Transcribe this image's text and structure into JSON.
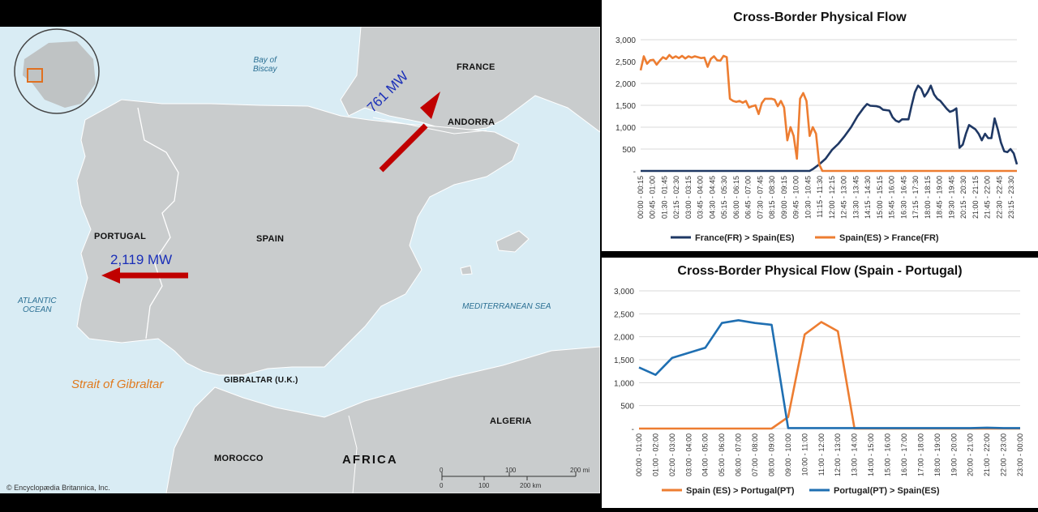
{
  "map": {
    "labels": {
      "bay_of_biscay": "Bay of\nBiscay",
      "france": "FRANCE",
      "andorra": "ANDORRA",
      "portugal": "PORTUGAL",
      "spain": "SPAIN",
      "atlantic": "ATLANTIC\nOCEAN",
      "mediterranean": "MEDITERRANEAN SEA",
      "strait": "Strait of Gibraltar",
      "gibraltar": "GIBRALTAR (U.K.)",
      "algeria": "ALGERIA",
      "morocco": "MOROCCO",
      "africa": "AFRICA",
      "copyright": "© Encyclopædia Britannica, Inc."
    },
    "flows": {
      "france_label": "761 MW",
      "portugal_label": "2,119 MW"
    },
    "scale": {
      "mi_ticks": [
        "0",
        "100",
        "200 mi"
      ],
      "km_ticks": [
        "0",
        "100",
        "200 km"
      ]
    },
    "colors": {
      "arrow": "#c00000",
      "land": "#c9cccd",
      "water": "#d9ecf4"
    }
  },
  "chart_data": [
    {
      "type": "line",
      "title": "Cross-Border Physical Flow",
      "ylim": [
        0,
        3000
      ],
      "y_ticks": [
        "-",
        "500",
        "1,000",
        "1,500",
        "2,000",
        "2,500",
        "3,000"
      ],
      "x_tick_labels": [
        "00:00 - 00:15",
        "00:45 - 01:00",
        "01:30 - 01:45",
        "02:15 - 02:30",
        "03:00 - 03:15",
        "03:45 - 04:00",
        "04:30 - 04:45",
        "05:15 - 05:30",
        "06:00 - 06:15",
        "06:45 - 07:00",
        "07:30 - 07:45",
        "08:15 - 08:30",
        "09:00 - 09:15",
        "09:45 - 10:00",
        "10:30 - 10:45",
        "11:15 - 11:30",
        "12:00 - 12:15",
        "12:45 - 13:00",
        "13:30 - 13:45",
        "14:15 - 14:30",
        "15:00 - 15:15",
        "15:45 - 16:00",
        "16:30 - 16:45",
        "17:15 - 17:30",
        "18:00 - 18:15",
        "18:45 - 19:00",
        "19:30 - 19:45",
        "20:15 - 20:30",
        "21:00 - 21:15",
        "21:45 - 22:00",
        "22:30 - 22:45",
        "23:15 - 23:30"
      ],
      "series": [
        {
          "name": "France(FR) > Spain(ES)",
          "color": "#1f3864",
          "points": [
            [
              0,
              0
            ],
            [
              53,
              0
            ],
            [
              54,
              40
            ],
            [
              56,
              150
            ],
            [
              58,
              280
            ],
            [
              60,
              480
            ],
            [
              62,
              620
            ],
            [
              64,
              800
            ],
            [
              66,
              1000
            ],
            [
              68,
              1250
            ],
            [
              70,
              1450
            ],
            [
              71,
              1530
            ],
            [
              72,
              1490
            ],
            [
              74,
              1480
            ],
            [
              75,
              1460
            ],
            [
              76,
              1400
            ],
            [
              78,
              1380
            ],
            [
              79,
              1230
            ],
            [
              80,
              1150
            ],
            [
              81,
              1120
            ],
            [
              82,
              1180
            ],
            [
              84,
              1180
            ],
            [
              85,
              1500
            ],
            [
              86,
              1800
            ],
            [
              87,
              1950
            ],
            [
              88,
              1880
            ],
            [
              89,
              1700
            ],
            [
              90,
              1800
            ],
            [
              91,
              1950
            ],
            [
              92,
              1750
            ],
            [
              93,
              1650
            ],
            [
              94,
              1600
            ],
            [
              96,
              1420
            ],
            [
              97,
              1350
            ],
            [
              98,
              1380
            ],
            [
              99,
              1430
            ],
            [
              100,
              530
            ],
            [
              101,
              600
            ],
            [
              102,
              850
            ],
            [
              103,
              1050
            ],
            [
              104,
              1000
            ],
            [
              105,
              950
            ],
            [
              106,
              850
            ],
            [
              107,
              700
            ],
            [
              108,
              850
            ],
            [
              109,
              750
            ],
            [
              110,
              750
            ],
            [
              111,
              1200
            ],
            [
              112,
              950
            ],
            [
              113,
              650
            ],
            [
              114,
              450
            ],
            [
              115,
              430
            ],
            [
              116,
              500
            ],
            [
              117,
              400
            ],
            [
              118,
              150
            ]
          ]
        },
        {
          "name": "Spain(ES) > France(FR)",
          "color": "#ed7d31",
          "points": [
            [
              0,
              2300
            ],
            [
              1,
              2620
            ],
            [
              2,
              2450
            ],
            [
              3,
              2530
            ],
            [
              4,
              2540
            ],
            [
              5,
              2430
            ],
            [
              6,
              2520
            ],
            [
              7,
              2600
            ],
            [
              8,
              2560
            ],
            [
              9,
              2650
            ],
            [
              10,
              2580
            ],
            [
              11,
              2620
            ],
            [
              12,
              2580
            ],
            [
              13,
              2630
            ],
            [
              14,
              2570
            ],
            [
              15,
              2620
            ],
            [
              16,
              2590
            ],
            [
              17,
              2620
            ],
            [
              18,
              2600
            ],
            [
              19,
              2580
            ],
            [
              20,
              2590
            ],
            [
              21,
              2380
            ],
            [
              22,
              2560
            ],
            [
              23,
              2620
            ],
            [
              24,
              2530
            ],
            [
              25,
              2520
            ],
            [
              26,
              2630
            ],
            [
              27,
              2600
            ],
            [
              28,
              1650
            ],
            [
              29,
              1600
            ],
            [
              30,
              1580
            ],
            [
              31,
              1600
            ],
            [
              32,
              1560
            ],
            [
              33,
              1600
            ],
            [
              34,
              1450
            ],
            [
              35,
              1480
            ],
            [
              36,
              1500
            ],
            [
              37,
              1300
            ],
            [
              38,
              1550
            ],
            [
              39,
              1650
            ],
            [
              40,
              1650
            ],
            [
              41,
              1650
            ],
            [
              42,
              1630
            ],
            [
              43,
              1480
            ],
            [
              44,
              1600
            ],
            [
              45,
              1450
            ],
            [
              46,
              700
            ],
            [
              47,
              1000
            ],
            [
              48,
              800
            ],
            [
              49,
              280
            ],
            [
              50,
              1650
            ],
            [
              51,
              1780
            ],
            [
              52,
              1600
            ],
            [
              53,
              800
            ],
            [
              54,
              1000
            ],
            [
              55,
              850
            ],
            [
              56,
              150
            ],
            [
              57,
              0
            ],
            [
              118,
              0
            ]
          ]
        }
      ]
    },
    {
      "type": "line",
      "title": "Cross-Border Physical Flow (Spain - Portugal)",
      "ylim": [
        0,
        3000
      ],
      "y_ticks": [
        "-",
        "500",
        "1,000",
        "1,500",
        "2,000",
        "2,500",
        "3,000"
      ],
      "categories": [
        "00:00 - 01:00",
        "01:00 - 02:00",
        "02:00 - 03:00",
        "03:00 - 04:00",
        "04:00 - 05:00",
        "05:00 - 06:00",
        "06:00 - 07:00",
        "07:00 - 08:00",
        "08:00 - 09:00",
        "09:00 - 10:00",
        "10:00 - 11:00",
        "11:00 - 12:00",
        "12:00 - 13:00",
        "13:00 - 14:00",
        "14:00 - 15:00",
        "15:00 - 16:00",
        "16:00 - 17:00",
        "17:00 - 18:00",
        "18:00 - 19:00",
        "19:00 - 20:00",
        "20:00 - 21:00",
        "21:00 - 22:00",
        "22:00 - 23:00",
        "23:00 - 00:00"
      ],
      "series": [
        {
          "name": "Spain (ES) > Portugal(PT)",
          "color": "#ed7d31",
          "values": [
            0,
            0,
            0,
            0,
            0,
            0,
            0,
            0,
            0,
            250,
            2050,
            2320,
            2120,
            0,
            0,
            0,
            0,
            0,
            0,
            0,
            0,
            0,
            0,
            0
          ]
        },
        {
          "name": "Portugal(PT) > Spain(ES)",
          "color": "#1f6fb2",
          "values": [
            1330,
            1170,
            1540,
            1650,
            1760,
            2300,
            2360,
            2300,
            2260,
            10,
            10,
            10,
            10,
            10,
            10,
            10,
            10,
            10,
            10,
            10,
            10,
            20,
            10,
            10
          ]
        }
      ]
    }
  ]
}
